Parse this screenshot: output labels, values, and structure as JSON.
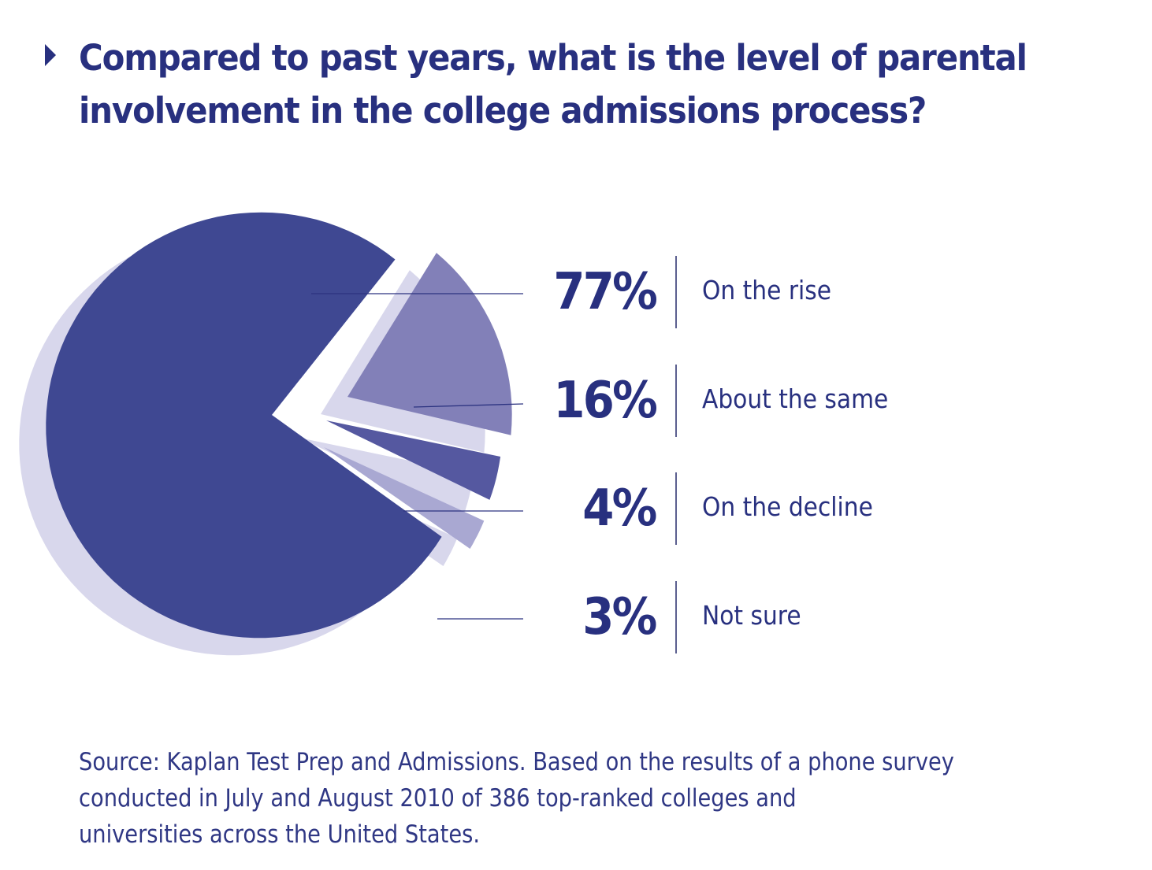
{
  "header": {
    "title": "Compared to past years, what is the level of parental involvement in the college admissions process?",
    "bullet_icon": "triangle-right-icon"
  },
  "colors": {
    "text": "#28307f",
    "slice_on_the_rise": "#3f4892",
    "slice_about_the_same": "#8280b8",
    "slice_on_the_decline": "#5558a0",
    "slice_not_sure": "#a9a8d2",
    "shadow": "#d8d7ec",
    "leader_line": "#2c3380"
  },
  "chart_data": {
    "type": "pie",
    "title": "Compared to past years, what is the level of parental involvement in the college admissions process?",
    "categories": [
      "On the rise",
      "About the same",
      "On the decline",
      "Not sure"
    ],
    "values": [
      77,
      16,
      4,
      3
    ],
    "value_labels": [
      "77%",
      "16%",
      "4%",
      "3%"
    ],
    "unit": "%",
    "legend": "right",
    "exploded": true,
    "style": "3d-shadow"
  },
  "footer": {
    "source": "Source: Kaplan Test Prep and Admissions. Based on the results of a phone survey\nconducted in July and August 2010 of 386 top-ranked colleges and\nuniversities across the United States."
  }
}
